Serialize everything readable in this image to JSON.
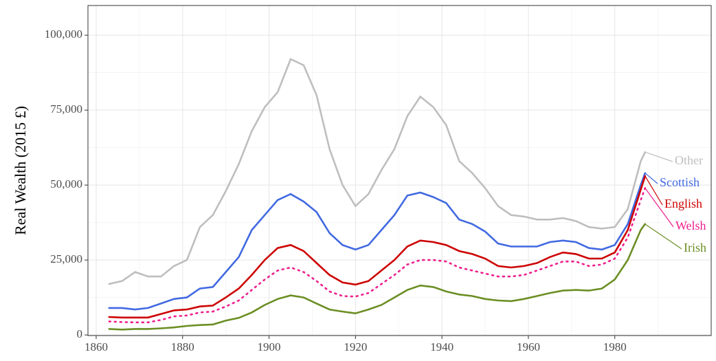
{
  "chart_data": {
    "type": "line",
    "ylabel": "Real Wealth (2015 £)",
    "x": [
      1863,
      1866,
      1869,
      1872,
      1875,
      1878,
      1881,
      1884,
      1887,
      1890,
      1893,
      1896,
      1899,
      1902,
      1905,
      1908,
      1911,
      1914,
      1917,
      1920,
      1923,
      1926,
      1929,
      1932,
      1935,
      1938,
      1941,
      1944,
      1947,
      1950,
      1953,
      1956,
      1959,
      1962,
      1965,
      1968,
      1971,
      1974,
      1977,
      1980,
      1983,
      1986,
      1987
    ],
    "series": [
      {
        "name": "Other",
        "color": "#bebebe",
        "line_style": "solid",
        "values": [
          17000,
          18000,
          21000,
          19500,
          19500,
          23000,
          25000,
          36000,
          40000,
          48000,
          57000,
          68000,
          76000,
          81000,
          92000,
          90000,
          80000,
          62000,
          50000,
          43000,
          47000,
          55000,
          62000,
          73000,
          79500,
          76000,
          70000,
          58000,
          54000,
          49000,
          43000,
          40000,
          39500,
          38500,
          38500,
          39000,
          38000,
          36000,
          35500,
          36000,
          42000,
          58000,
          61000
        ]
      },
      {
        "name": "Scottish",
        "color": "#4169e1",
        "line_style": "solid",
        "values": [
          9000,
          9000,
          8500,
          9000,
          10500,
          12000,
          12500,
          15500,
          16000,
          21000,
          26000,
          35000,
          40000,
          45000,
          47000,
          44500,
          41000,
          34000,
          30000,
          28500,
          30000,
          35000,
          40000,
          46500,
          47500,
          46000,
          44000,
          38500,
          37000,
          34500,
          30500,
          29500,
          29500,
          29500,
          31000,
          31500,
          31000,
          29000,
          28500,
          30000,
          37000,
          50000,
          54000
        ]
      },
      {
        "name": "English",
        "color": "#cd0000",
        "line_style": "solid",
        "values": [
          6000,
          5800,
          5800,
          5800,
          7000,
          8200,
          8500,
          9500,
          9800,
          12500,
          15500,
          20000,
          25000,
          29000,
          30000,
          28000,
          24000,
          20000,
          17500,
          16800,
          18000,
          21500,
          25000,
          29500,
          31500,
          31000,
          30000,
          28000,
          27000,
          25500,
          23000,
          22500,
          23000,
          24000,
          26000,
          27500,
          27000,
          25500,
          25500,
          27500,
          35000,
          48500,
          53000
        ]
      },
      {
        "name": "Welsh",
        "color": "#ee1e8c",
        "line_style": "dotted",
        "values": [
          4500,
          4300,
          4200,
          4200,
          5000,
          6200,
          6500,
          7500,
          7800,
          9500,
          11500,
          15000,
          18500,
          21500,
          22500,
          21000,
          18000,
          14500,
          13000,
          12800,
          14000,
          17000,
          20000,
          23500,
          25000,
          25000,
          24500,
          22500,
          21500,
          20500,
          19500,
          19500,
          20000,
          21500,
          23000,
          24500,
          24500,
          23000,
          23500,
          25500,
          32500,
          45000,
          49000
        ]
      },
      {
        "name": "Irish",
        "color": "#6b8e23",
        "line_style": "solid",
        "values": [
          2000,
          1800,
          2000,
          2000,
          2200,
          2500,
          3000,
          3300,
          3500,
          4800,
          5700,
          7500,
          10000,
          12000,
          13200,
          12500,
          10500,
          8500,
          7800,
          7200,
          8500,
          10000,
          12500,
          15000,
          16500,
          16000,
          14500,
          13500,
          13000,
          12000,
          11500,
          11300,
          12000,
          13000,
          14000,
          14800,
          15000,
          14800,
          15500,
          18500,
          25000,
          35000,
          37000
        ]
      }
    ],
    "xlim": [
      1858.1,
      2002.3
    ],
    "ylim": [
      -200,
      109900
    ],
    "xticks": [
      1860,
      1880,
      1900,
      1920,
      1940,
      1960,
      1980
    ],
    "yticks": [
      0,
      {
        "value": 25000,
        "label": "25,000"
      },
      {
        "value": 50000,
        "label": "50,000"
      },
      {
        "value": 75000,
        "label": "75,000"
      },
      {
        "value": 100000,
        "label": "100,000"
      }
    ],
    "grid": true
  }
}
